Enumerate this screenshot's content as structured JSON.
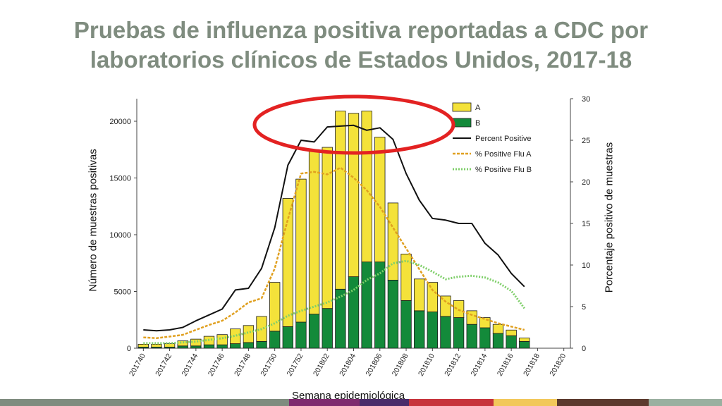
{
  "title": {
    "line1": "Pruebas de influenza positiva reportadas a CDC por",
    "line2": "laboratorios clínicos de Estados Unidos, 2017-18"
  },
  "colors": {
    "title": "#7f8c7f",
    "flu_a_bar": "#f4e23a",
    "flu_b_bar": "#138a3a",
    "percent_positive": "#111111",
    "flu_a_line": "#e0a020",
    "flu_b_line": "#7fcf6a",
    "highlight_ellipse": "#e32222"
  },
  "chart_data": {
    "type": "bar",
    "stacked": true,
    "title": "Pruebas de influenza positiva reportadas a CDC por laboratorios clínicos de Estados Unidos, 2017-18",
    "xlabel": "Semana epidemiológica",
    "ylabel_left": "Número de muestras positivas",
    "ylabel_right": "Porcentaje positivo de muestras",
    "ylim_left": [
      0,
      22000
    ],
    "ylim_right": [
      0,
      30
    ],
    "yticks_left": [
      "0",
      "5000",
      "10000",
      "15000",
      "20000"
    ],
    "yticks_right": [
      "0",
      "5",
      "10",
      "15",
      "20",
      "25",
      "30"
    ],
    "categories": [
      "201740",
      "201741",
      "201742",
      "201743",
      "201744",
      "201745",
      "201746",
      "201747",
      "201748",
      "201749",
      "201750",
      "201751",
      "201752",
      "201801",
      "201802",
      "201803",
      "201804",
      "201805",
      "201806",
      "201807",
      "201808",
      "201809",
      "201810",
      "201811",
      "201812",
      "201813",
      "201814",
      "201815",
      "201816",
      "201817",
      "201818",
      "201819",
      "201820"
    ],
    "x_tick_labels": [
      "201740",
      "201742",
      "201744",
      "201746",
      "201748",
      "201750",
      "201752",
      "201802",
      "201804",
      "201806",
      "201808",
      "201810",
      "201812",
      "201814",
      "201816",
      "201818",
      "201820"
    ],
    "series": [
      {
        "name": "A",
        "kind": "bar",
        "values": [
          250,
          250,
          300,
          450,
          600,
          750,
          900,
          1300,
          1500,
          2200,
          4300,
          11300,
          12600,
          14500,
          14200,
          15700,
          14400,
          13300,
          11000,
          6800,
          4100,
          2800,
          2600,
          1800,
          1500,
          1200,
          900,
          800,
          500,
          300,
          null,
          null,
          null
        ]
      },
      {
        "name": "B",
        "kind": "bar",
        "values": [
          100,
          100,
          100,
          200,
          200,
          300,
          300,
          400,
          500,
          600,
          1500,
          1900,
          2300,
          3000,
          3500,
          5200,
          6300,
          7600,
          7600,
          6000,
          4200,
          3300,
          3200,
          2800,
          2700,
          2100,
          1800,
          1300,
          1100,
          600,
          null,
          null,
          null
        ]
      },
      {
        "name": "Percent Positive",
        "kind": "line",
        "axis": "right",
        "values": [
          2.2,
          2.1,
          2.2,
          2.5,
          3.3,
          4.0,
          4.7,
          7.0,
          7.2,
          9.6,
          14.5,
          22.0,
          25.0,
          24.8,
          26.6,
          26.7,
          26.8,
          26.2,
          26.5,
          25.1,
          21.0,
          17.8,
          15.6,
          15.4,
          15.0,
          15.0,
          12.6,
          11.2,
          9.0,
          7.4,
          null,
          null,
          null
        ]
      },
      {
        "name": "% Positive Flu A",
        "kind": "line",
        "axis": "right",
        "values": [
          1.3,
          1.2,
          1.4,
          1.6,
          2.2,
          2.8,
          3.3,
          4.3,
          5.5,
          6.0,
          9.6,
          15.5,
          21.0,
          21.2,
          20.9,
          21.7,
          20.5,
          19.0,
          17.0,
          14.5,
          12.0,
          9.5,
          7.0,
          5.6,
          4.6,
          4.0,
          3.5,
          3.0,
          2.6,
          2.2,
          null,
          null,
          null
        ]
      },
      {
        "name": "% Positive Flu B",
        "kind": "line",
        "axis": "right",
        "values": [
          0.6,
          0.6,
          0.6,
          0.7,
          0.8,
          1.0,
          1.2,
          1.5,
          1.9,
          2.3,
          3.0,
          3.9,
          4.5,
          5.0,
          5.5,
          6.2,
          7.0,
          8.2,
          9.0,
          10.2,
          10.5,
          10.0,
          9.2,
          8.3,
          8.6,
          8.7,
          8.5,
          7.9,
          6.9,
          4.8,
          null,
          null,
          null
        ]
      }
    ],
    "legend": [
      "A",
      "B",
      "Percent Positive",
      "% Positive Flu A",
      "% Positive Flu B"
    ],
    "legend_position": "top-right",
    "annotation": "red ellipse highlighting the peak weeks 201803-201807"
  },
  "bottom_strip_colors": [
    "#7f8c7f",
    "#7f8c7f",
    "#7f2a6f",
    "#4a2c6a",
    "#c7343c",
    "#f2c85b",
    "#5c3a2e",
    "#9ab0a0"
  ]
}
